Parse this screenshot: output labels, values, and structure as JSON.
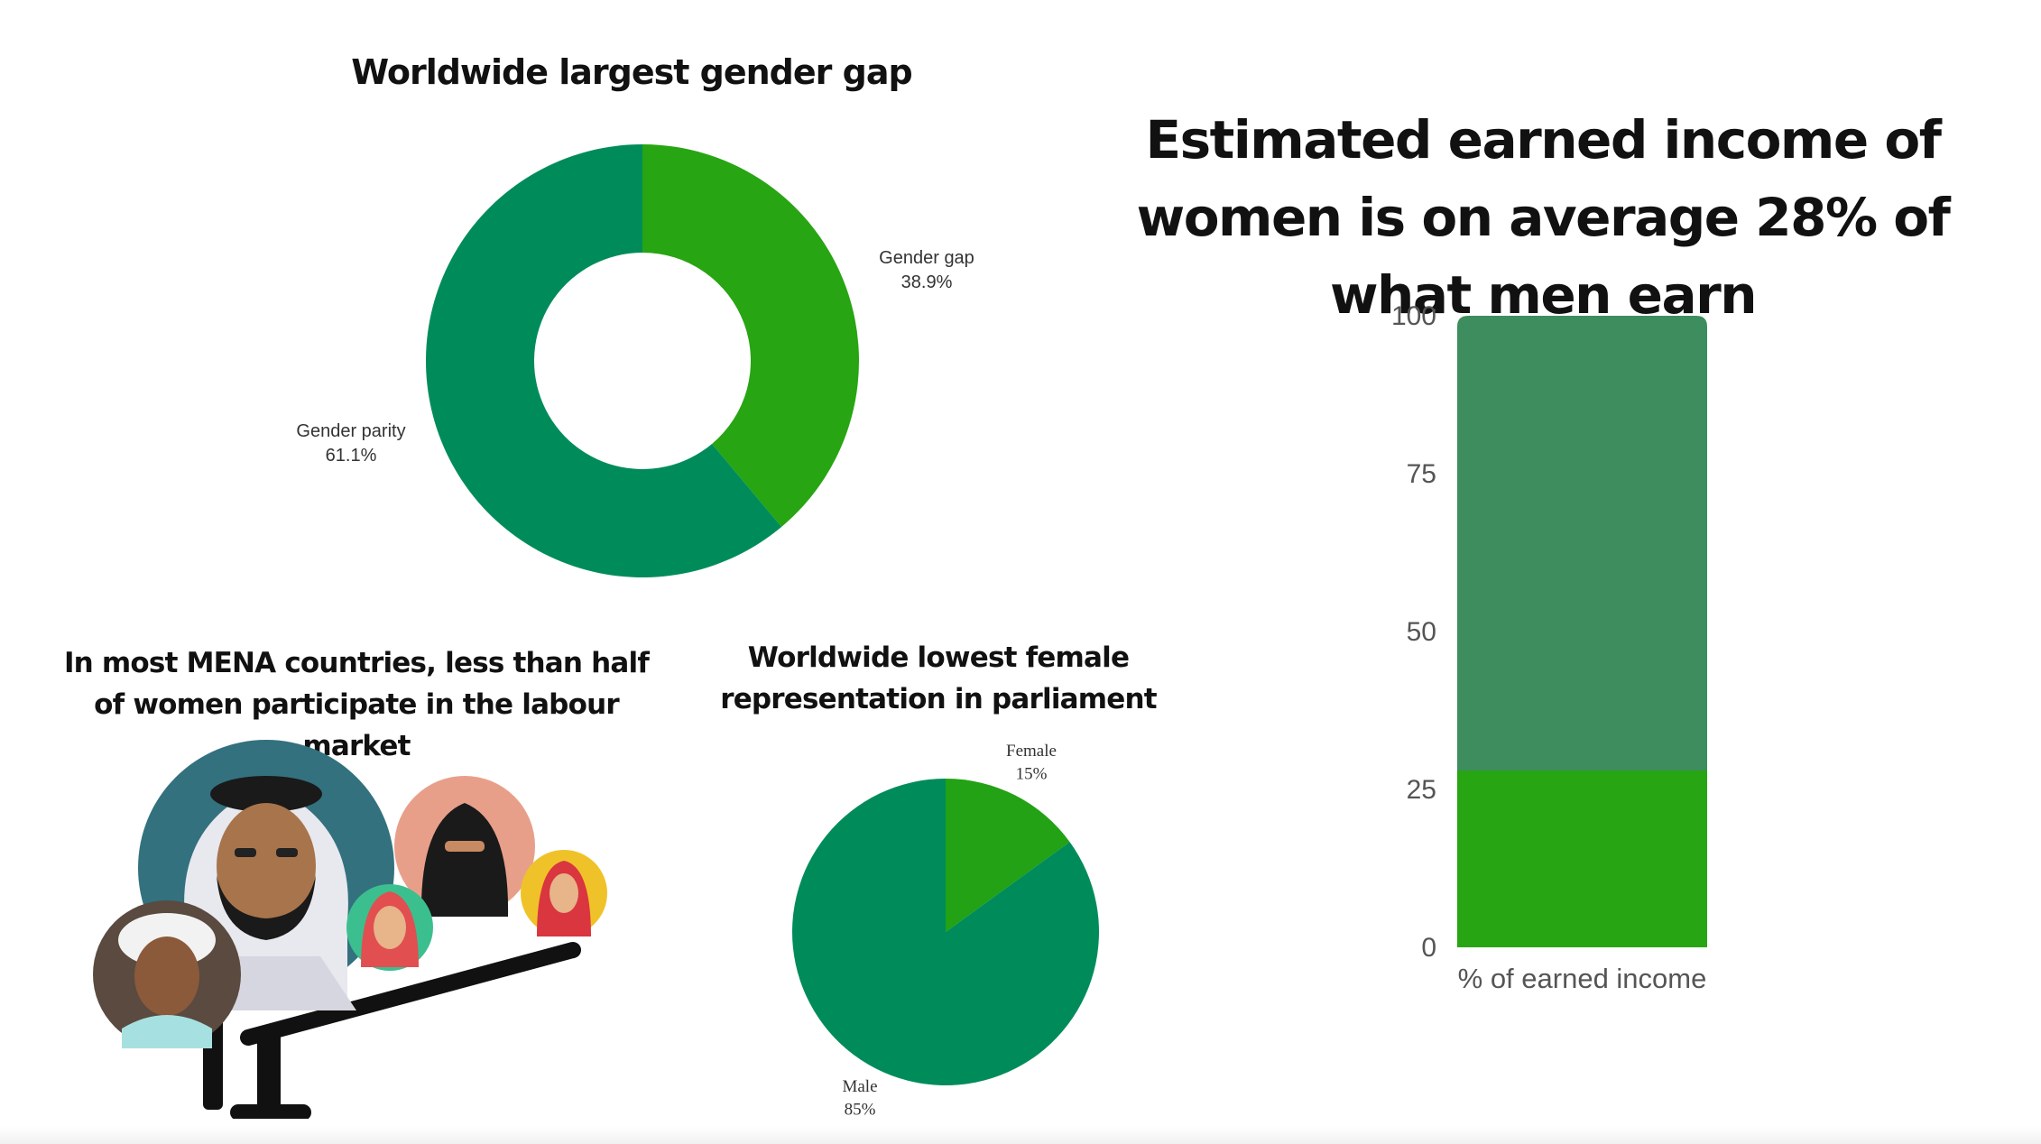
{
  "chart_data": [
    {
      "type": "pie",
      "variant": "donut",
      "title": "Worldwide largest gender gap",
      "slices": [
        {
          "label": "Gender gap",
          "value": 38.9,
          "value_label": "38.9%",
          "color": "#27a513"
        },
        {
          "label": "Gender parity",
          "value": 61.1,
          "value_label": "61.1%",
          "color": "#008c5a"
        }
      ]
    },
    {
      "type": "bar",
      "variant": "stacked",
      "title": "Estimated earned income of women is on average 28% of what men earn",
      "categories": [
        "% of earned income"
      ],
      "series": [
        {
          "values": [
            28
          ],
          "color": "#27a513"
        },
        {
          "values": [
            72
          ],
          "color": "#3e8d5e"
        }
      ],
      "ylim": [
        0,
        100
      ],
      "yticks": [
        0,
        25,
        50,
        75,
        100
      ],
      "xlabel": "",
      "ylabel": ""
    },
    {
      "type": "pie",
      "title": "Worldwide lowest female representation in parliament",
      "slices": [
        {
          "label": "Female",
          "value": 15,
          "value_label": "15%",
          "color": "#22a214"
        },
        {
          "label": "Male",
          "value": 85,
          "value_label": "85%",
          "color": "#008c5a"
        }
      ]
    }
  ],
  "labour": {
    "title": "In  most MENA countries, less than half of women participate in the labour market",
    "illustration_icon": "seesaw-people-icon"
  }
}
